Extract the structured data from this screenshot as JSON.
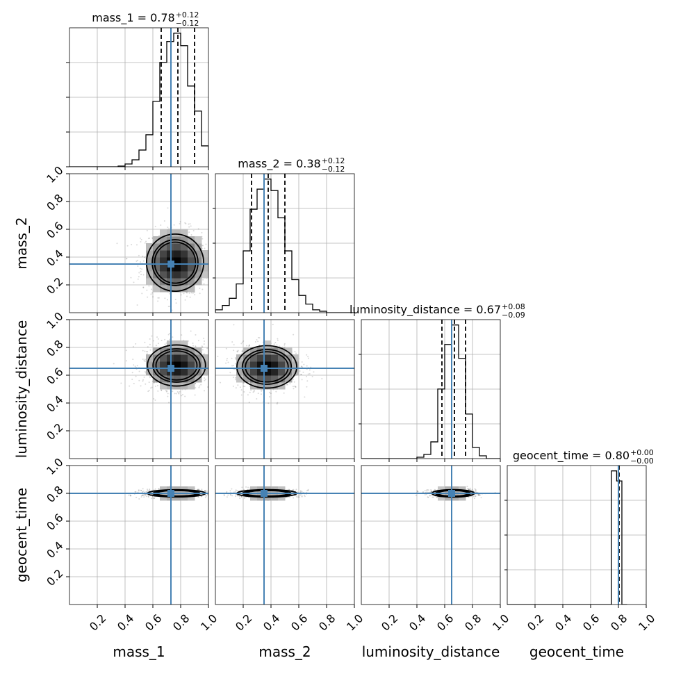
{
  "chart_data": {
    "type": "corner",
    "parameters": [
      "mass_1",
      "mass_2",
      "luminosity_distance",
      "geocent_time"
    ],
    "axis_range": [
      0,
      1.0
    ],
    "ticks": [
      0.2,
      0.4,
      0.6,
      0.8,
      1.0
    ],
    "tick_labels": [
      "0.2",
      "0.4",
      "0.6",
      "0.8",
      "1.0"
    ],
    "grid": true,
    "truth_color": "#4682b4",
    "truths": {
      "mass_1": 0.73,
      "mass_2": 0.35,
      "luminosity_distance": 0.65,
      "geocent_time": 0.8
    },
    "titles": [
      {
        "parameter": "mass_1",
        "text": "mass_1 = 0.78",
        "upper": "+0.12",
        "lower": "−0.12"
      },
      {
        "parameter": "mass_2",
        "text": "mass_2 = 0.38",
        "upper": "+0.12",
        "lower": "−0.12"
      },
      {
        "parameter": "luminosity_distance",
        "text": "luminosity_distance = 0.67",
        "upper": "+0.08",
        "lower": "−0.09"
      },
      {
        "parameter": "geocent_time",
        "text": "geocent_time = 0.80",
        "upper": "+0.00",
        "lower": "−0.00"
      }
    ],
    "quantiles": {
      "mass_1": [
        0.66,
        0.78,
        0.9
      ],
      "mass_2": [
        0.26,
        0.38,
        0.5
      ],
      "luminosity_distance": [
        0.58,
        0.67,
        0.75
      ],
      "geocent_time": [
        0.8,
        0.8,
        0.805
      ]
    },
    "marginals": [
      {
        "parameter": "mass_1",
        "bin_edges": [
          0.0,
          0.05,
          0.1,
          0.15,
          0.2,
          0.25,
          0.3,
          0.35,
          0.4,
          0.45,
          0.5,
          0.55,
          0.6,
          0.65,
          0.7,
          0.75,
          0.8,
          0.85,
          0.9,
          0.95,
          1.0
        ],
        "counts": [
          0,
          0,
          0,
          0,
          0,
          0,
          0,
          0.005,
          0.02,
          0.05,
          0.12,
          0.23,
          0.47,
          0.75,
          0.9,
          0.96,
          0.87,
          0.58,
          0.4,
          0.15
        ]
      },
      {
        "parameter": "mass_2",
        "bin_edges": [
          0.0,
          0.05,
          0.1,
          0.15,
          0.2,
          0.25,
          0.3,
          0.35,
          0.4,
          0.45,
          0.5,
          0.55,
          0.6,
          0.65,
          0.7,
          0.75,
          0.8,
          0.85,
          0.9,
          0.95,
          1.0
        ],
        "counts": [
          0.02,
          0.05,
          0.1,
          0.2,
          0.43,
          0.72,
          0.86,
          0.93,
          0.85,
          0.66,
          0.43,
          0.23,
          0.12,
          0.06,
          0.02,
          0.01,
          0,
          0,
          0,
          0
        ]
      },
      {
        "parameter": "luminosity_distance",
        "bin_edges": [
          0.0,
          0.05,
          0.1,
          0.15,
          0.2,
          0.25,
          0.3,
          0.35,
          0.4,
          0.45,
          0.5,
          0.55,
          0.6,
          0.65,
          0.7,
          0.75,
          0.8,
          0.85,
          0.9,
          0.95,
          1.0
        ],
        "counts": [
          0,
          0,
          0,
          0,
          0,
          0,
          0,
          0,
          0.01,
          0.03,
          0.12,
          0.5,
          0.82,
          0.96,
          0.72,
          0.32,
          0.08,
          0.02,
          0,
          0
        ]
      },
      {
        "parameter": "geocent_time",
        "bin_edges": [
          0.0,
          0.0375,
          0.075,
          0.1125,
          0.15,
          0.1875,
          0.225,
          0.2625,
          0.3,
          0.3375,
          0.375,
          0.4125,
          0.45,
          0.4875,
          0.525,
          0.5625,
          0.6,
          0.6375,
          0.675,
          0.7125,
          0.75,
          0.7875,
          0.825,
          0.8625
        ],
        "counts": [
          0,
          0,
          0,
          0,
          0,
          0,
          0,
          0,
          0,
          0,
          0,
          0,
          0,
          0,
          0,
          0,
          0,
          0,
          0,
          0,
          0.93,
          0.86,
          0
        ]
      }
    ],
    "joint": [
      {
        "x": "mass_1",
        "y": "mass_2",
        "center": [
          0.76,
          0.36
        ],
        "sd": [
          0.12,
          0.12
        ],
        "levels": [
          0.23,
          0.39,
          0.47
        ]
      },
      {
        "x": "mass_1",
        "y": "luminosity_distance",
        "center": [
          0.77,
          0.67
        ],
        "sd": [
          0.12,
          0.085
        ],
        "levels": [
          0.22,
          0.37,
          0.47
        ]
      },
      {
        "x": "mass_2",
        "y": "luminosity_distance",
        "center": [
          0.37,
          0.66
        ],
        "sd": [
          0.12,
          0.085
        ],
        "levels": [
          0.2,
          0.34,
          0.44
        ]
      },
      {
        "x": "mass_1",
        "y": "geocent_time",
        "center": [
          0.77,
          0.8
        ],
        "sd": [
          0.12,
          0.015
        ],
        "levels": [
          0.22,
          0.37,
          0.47
        ]
      },
      {
        "x": "mass_2",
        "y": "geocent_time",
        "center": [
          0.37,
          0.8
        ],
        "sd": [
          0.12,
          0.015
        ],
        "levels": [
          0.2,
          0.34,
          0.44
        ]
      },
      {
        "x": "luminosity_distance",
        "y": "geocent_time",
        "center": [
          0.66,
          0.8
        ],
        "sd": [
          0.085,
          0.015
        ],
        "levels": [
          0.2,
          0.34,
          0.44
        ]
      }
    ]
  }
}
